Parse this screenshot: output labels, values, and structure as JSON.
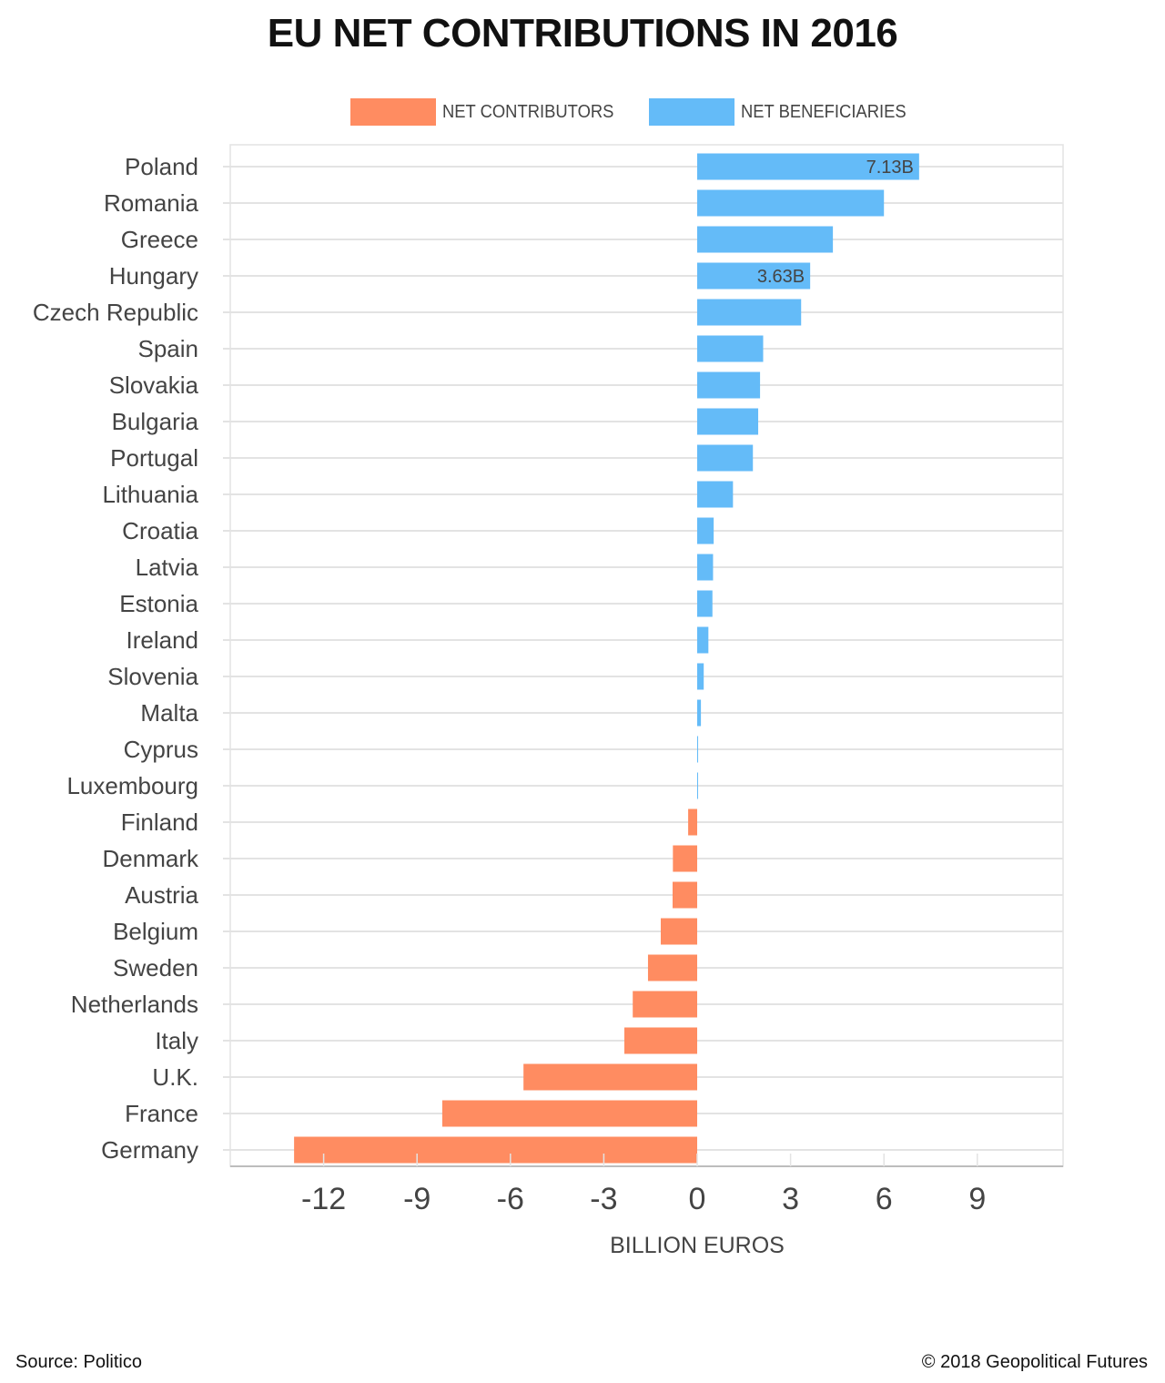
{
  "colors": {
    "contributors": "#ff8c61",
    "beneficiaries": "#64bbf8",
    "grid": "#e3e3e3",
    "axis": "#bdbdbd",
    "text": "#444444"
  },
  "footer": {
    "source": "Source:  Politico",
    "copyright": "© 2018 Geopolitical Futures"
  },
  "chart_data": {
    "type": "bar",
    "orientation": "horizontal",
    "title": "EU NET CONTRIBUTIONS IN 2016",
    "xlabel": "BILLION EUROS",
    "ylabel": "",
    "xlim": [
      -15,
      11.8
    ],
    "xticks": [
      -12,
      -9,
      -6,
      -3,
      0,
      3,
      6,
      9
    ],
    "xtick_labels": [
      "-12",
      "-9",
      "-6",
      "-3",
      "0",
      "3",
      "6",
      "9"
    ],
    "grid": true,
    "legend": {
      "placement": "top-center",
      "entries": [
        {
          "name": "NET CONTRIBUTORS",
          "color": "#ff8c61"
        },
        {
          "name": "NET BENEFICIARIES",
          "color": "#64bbf8"
        }
      ]
    },
    "categories": [
      "Poland",
      "Romania",
      "Greece",
      "Hungary",
      "Czech Republic",
      "Spain",
      "Slovakia",
      "Bulgaria",
      "Portugal",
      "Lithuania",
      "Croatia",
      "Latvia",
      "Estonia",
      "Ireland",
      "Slovenia",
      "Malta",
      "Cyprus",
      "Luxembourg",
      "Finland",
      "Denmark",
      "Austria",
      "Belgium",
      "Sweden",
      "Netherlands",
      "Italy",
      "U.K.",
      "France",
      "Germany"
    ],
    "values": [
      7.13,
      6.0,
      4.36,
      3.63,
      3.34,
      2.12,
      2.02,
      1.96,
      1.79,
      1.15,
      0.53,
      0.51,
      0.49,
      0.36,
      0.21,
      0.12,
      0.03,
      0.01,
      -0.29,
      -0.78,
      -0.79,
      -1.17,
      -1.58,
      -2.07,
      -2.34,
      -5.58,
      -8.19,
      -12.95
    ],
    "data_labels": [
      {
        "index": 0,
        "text": "7.13B"
      },
      {
        "index": 3,
        "text": "3.63B"
      }
    ]
  }
}
